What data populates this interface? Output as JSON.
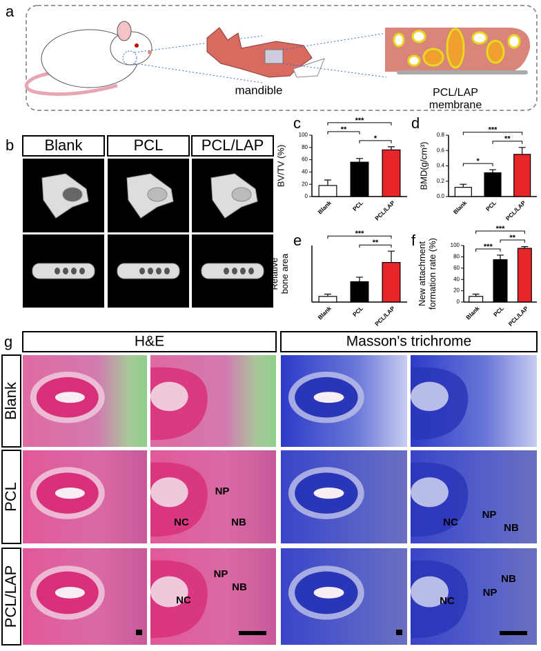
{
  "panel_labels": [
    "a",
    "b",
    "c",
    "d",
    "e",
    "f",
    "g"
  ],
  "schematic": {
    "mandible": "mandible",
    "membrane": [
      "PCL/LAP",
      "membrane"
    ]
  },
  "microct": {
    "columns": [
      "Blank",
      "PCL",
      "PCL/LAP"
    ]
  },
  "chart_data": [
    {
      "type": "bar",
      "y_label": [
        "BV/TV (%)"
      ],
      "categories": [
        "Blank",
        "PCL",
        "PCL/LAP"
      ],
      "values": [
        18,
        56,
        76
      ],
      "errors": [
        9,
        6,
        5
      ],
      "colors": [
        "#ffffff",
        "#000000",
        "#e8262a"
      ],
      "ylim": [
        0,
        100
      ],
      "yticks": [
        0,
        20,
        40,
        60,
        80,
        100
      ],
      "significance": [
        {
          "pair": [
            "PCL",
            "PCL/LAP"
          ],
          "label": "*"
        },
        {
          "pair": [
            "Blank",
            "PCL"
          ],
          "label": "**"
        },
        {
          "pair": [
            "Blank",
            "PCL/LAP"
          ],
          "label": "***"
        }
      ]
    },
    {
      "type": "bar",
      "y_label": [
        "BMD(g/cm³)"
      ],
      "categories": [
        "Blank",
        "PCL",
        "PCL/LAP"
      ],
      "values": [
        0.12,
        0.31,
        0.55
      ],
      "errors": [
        0.04,
        0.04,
        0.09
      ],
      "colors": [
        "#ffffff",
        "#000000",
        "#e8262a"
      ],
      "ylim": [
        0,
        0.8
      ],
      "yticks": [
        {
          "value": 0,
          "label": "0.0"
        },
        0.2,
        0.4,
        0.6,
        0.8
      ],
      "significance": [
        {
          "pair": [
            "Blank",
            "PCL"
          ],
          "label": "*"
        },
        {
          "pair": [
            "PCL",
            "PCL/LAP"
          ],
          "label": "**"
        },
        {
          "pair": [
            "Blank",
            "PCL/LAP"
          ],
          "label": "***"
        }
      ]
    },
    {
      "type": "bar",
      "y_label": [
        "Relative",
        "bone area"
      ],
      "categories": [
        "Blank",
        "PCL",
        "PCL/LAP"
      ],
      "values": [
        1.0,
        3.6,
        7.0
      ],
      "errors": [
        0.4,
        0.8,
        2.0
      ],
      "colors": [
        "#ffffff",
        "#000000",
        "#e8262a"
      ],
      "ylim": [
        0,
        10
      ],
      "significance": [
        {
          "pair": [
            "PCL",
            "PCL/LAP"
          ],
          "label": "**"
        },
        {
          "pair": [
            "Blank",
            "PCL/LAP"
          ],
          "label": "***"
        }
      ]
    },
    {
      "type": "bar",
      "y_label": [
        "New attachment",
        "formation rate (%)"
      ],
      "categories": [
        "Blank",
        "PCL",
        "PCL/LAP"
      ],
      "values": [
        10,
        75,
        95
      ],
      "errors": [
        4,
        8,
        3
      ],
      "colors": [
        "#ffffff",
        "#000000",
        "#e8262a"
      ],
      "ylim": [
        0,
        100
      ],
      "yticks": [
        0,
        20,
        40,
        60,
        80,
        100
      ],
      "significance": [
        {
          "pair": [
            "Blank",
            "PCL"
          ],
          "label": "***"
        },
        {
          "pair": [
            "PCL",
            "PCL/LAP"
          ],
          "label": "**"
        },
        {
          "pair": [
            "Blank",
            "PCL/LAP"
          ],
          "label": "***"
        }
      ]
    }
  ],
  "histology": {
    "stains": [
      "H&E",
      "Masson's trichrome"
    ],
    "rows": [
      "Blank",
      "PCL",
      "PCL/LAP"
    ],
    "annotations": [
      [
        "NP",
        "NC",
        "NB"
      ],
      [
        "NC",
        "NP",
        "NB"
      ],
      [
        "NP",
        "NB",
        "NC"
      ],
      [
        "NB",
        "NP",
        "NC"
      ]
    ]
  }
}
